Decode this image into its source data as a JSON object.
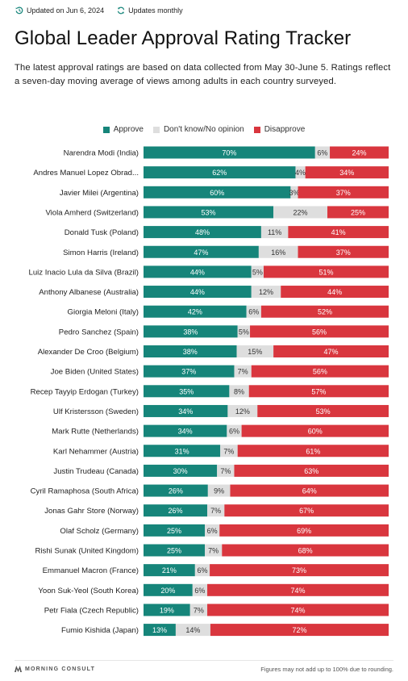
{
  "header": {
    "updated": "Updated on Jun 6, 2024",
    "frequency": "Updates monthly"
  },
  "title": "Global Leader Approval Rating Tracker",
  "subtitle": "The latest approval ratings are based on data collected from May 30-June 5. Ratings reflect a seven-day moving average of views among adults in each country surveyed.",
  "footer": {
    "logo": "MORNING CONSULT",
    "note": "Figures may not add up to 100% due to rounding."
  },
  "colors": {
    "approve": "#16857a",
    "unsure": "#dedede",
    "disapprove": "#d9363e"
  },
  "chart_data": {
    "type": "bar",
    "stacked": true,
    "orientation": "horizontal",
    "title": "",
    "legend_position": "top",
    "xlim": [
      0,
      100
    ],
    "categories": [
      "Narendra Modi (India)",
      "Andres Manuel Lopez Obrad...",
      "Javier Milei (Argentina)",
      "Viola Amherd (Switzerland)",
      "Donald Tusk (Poland)",
      "Simon Harris (Ireland)",
      "Luiz Inacio Lula da Silva (Brazil)",
      "Anthony Albanese (Australia)",
      "Giorgia Meloni (Italy)",
      "Pedro Sanchez (Spain)",
      "Alexander De Croo (Belgium)",
      "Joe Biden (United States)",
      "Recep Tayyip Erdogan (Turkey)",
      "Ulf Kristersson (Sweden)",
      "Mark Rutte (Netherlands)",
      "Karl Nehammer (Austria)",
      "Justin Trudeau (Canada)",
      "Cyril Ramaphosa (South Africa)",
      "Jonas Gahr Store (Norway)",
      "Olaf Scholz (Germany)",
      "Rishi Sunak (United Kingdom)",
      "Emmanuel Macron (France)",
      "Yoon Suk-Yeol (South Korea)",
      "Petr Fiala (Czech Republic)",
      "Fumio Kishida (Japan)"
    ],
    "series": [
      {
        "name": "Approve",
        "values": [
          70,
          62,
          60,
          53,
          48,
          47,
          44,
          44,
          42,
          38,
          38,
          37,
          35,
          34,
          34,
          31,
          30,
          26,
          26,
          25,
          25,
          21,
          20,
          19,
          13
        ]
      },
      {
        "name": "Don't know/No opinion",
        "values": [
          6,
          4,
          3,
          22,
          11,
          16,
          5,
          12,
          6,
          5,
          15,
          7,
          8,
          12,
          6,
          7,
          7,
          9,
          7,
          6,
          7,
          6,
          6,
          7,
          14
        ]
      },
      {
        "name": "Disapprove",
        "values": [
          24,
          34,
          37,
          25,
          41,
          37,
          51,
          44,
          52,
          56,
          47,
          56,
          57,
          53,
          60,
          61,
          63,
          64,
          67,
          69,
          68,
          73,
          74,
          74,
          72
        ]
      }
    ]
  }
}
